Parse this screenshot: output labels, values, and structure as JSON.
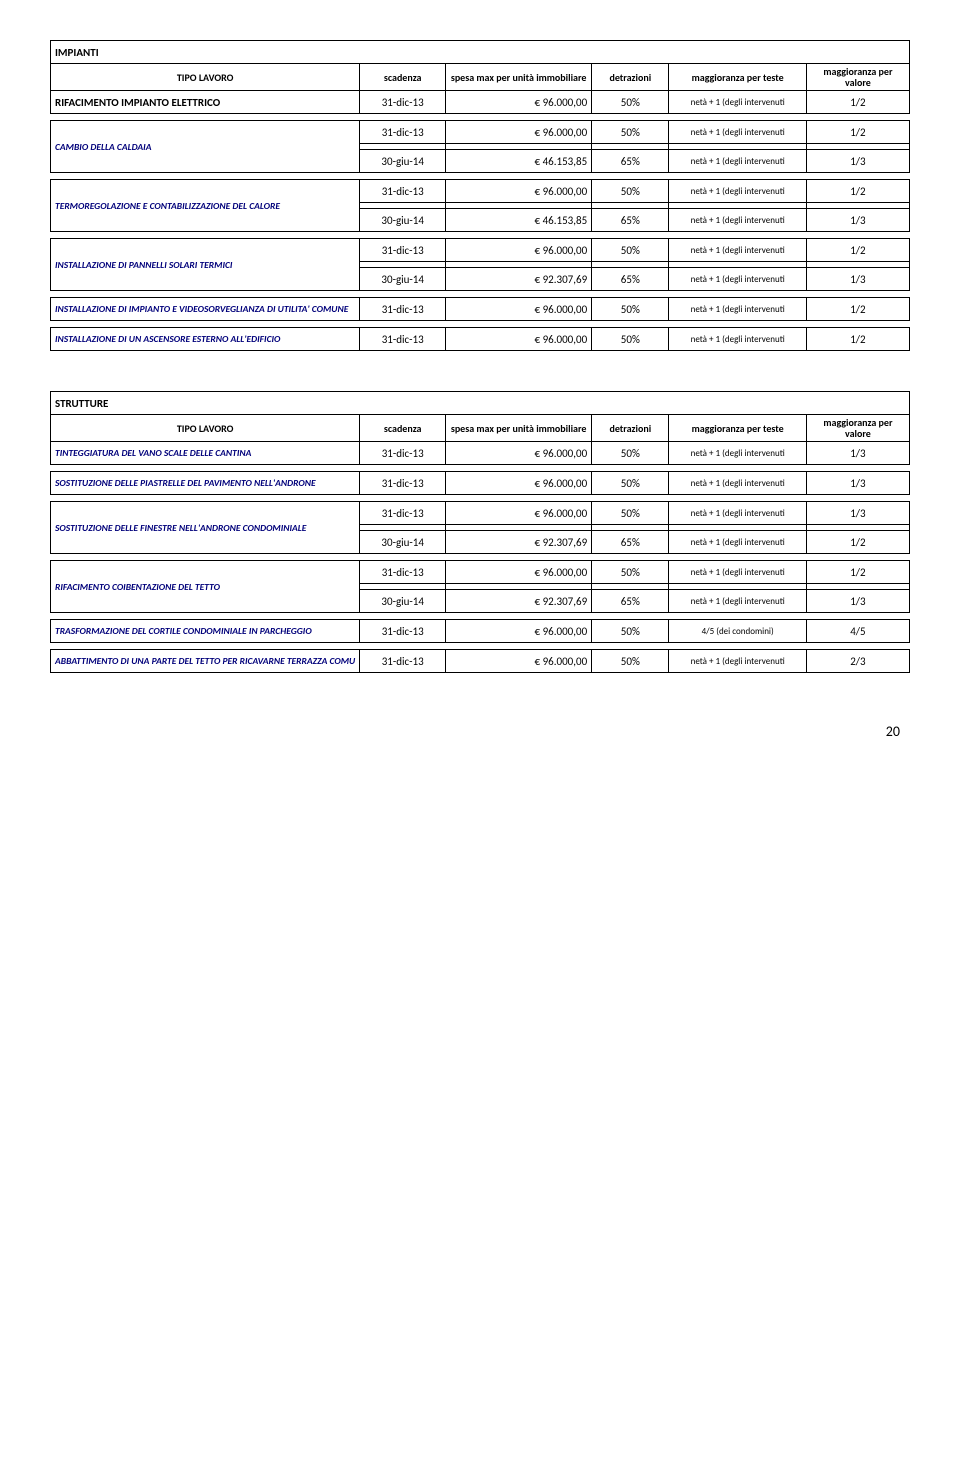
{
  "page_number": "20",
  "impianti": {
    "title": "IMPIANTI",
    "headers": {
      "tipo_lavoro": "TIPO LAVORO",
      "scadenza": "scadenza",
      "spesa": "spesa max per unità immobiliare",
      "detrazioni": "detrazioni",
      "magg_teste": "maggioranza per teste",
      "magg_valore": "maggioranza per valore"
    },
    "rows": [
      {
        "label": "RIFACIMENTO IMPIANTO ELETTRICO",
        "style": "black",
        "lines": [
          {
            "scad": "31-dic-13",
            "spesa": "€ 96.000,00",
            "detr": "50%",
            "teste": "netà + 1 (degli intervenuti",
            "val": "1/2"
          }
        ]
      },
      {
        "label": "CAMBIO DELLA CALDAIA",
        "style": "blue",
        "lines": [
          {
            "scad": "31-dic-13",
            "spesa": "€ 96.000,00",
            "detr": "50%",
            "teste": "netà + 1 (degli intervenuti",
            "val": "1/2"
          },
          {
            "scad": "30-giu-14",
            "spesa": "€ 46.153,85",
            "detr": "65%",
            "teste": "netà + 1 (degli intervenuti",
            "val": "1/3"
          }
        ]
      },
      {
        "label": "TERMOREGOLAZIONE E CONTABILIZZAZIONE DEL CALORE",
        "style": "blue",
        "lines": [
          {
            "scad": "31-dic-13",
            "spesa": "€ 96.000,00",
            "detr": "50%",
            "teste": "netà + 1 (degli intervenuti",
            "val": "1/2"
          },
          {
            "scad": "30-giu-14",
            "spesa": "€ 46.153,85",
            "detr": "65%",
            "teste": "netà + 1 (degli intervenuti",
            "val": "1/3"
          }
        ]
      },
      {
        "label": "INSTALLAZIONE DI PANNELLI SOLARI TERMICI",
        "style": "blue",
        "lines": [
          {
            "scad": "31-dic-13",
            "spesa": "€ 96.000,00",
            "detr": "50%",
            "teste": "netà + 1 (degli intervenuti",
            "val": "1/2"
          },
          {
            "scad": "30-giu-14",
            "spesa": "€ 92.307,69",
            "detr": "65%",
            "teste": "netà + 1 (degli intervenuti",
            "val": "1/3"
          }
        ]
      },
      {
        "label": "INSTALLAZIONE DI IMPIANTO E VIDEOSORVEGLIANZA DI UTILITA' COMUNE",
        "style": "blue",
        "lines": [
          {
            "scad": "31-dic-13",
            "spesa": "€ 96.000,00",
            "detr": "50%",
            "teste": "netà + 1 (degli intervenuti",
            "val": "1/2"
          }
        ]
      },
      {
        "label": "INSTALLAZIONE DI UN ASCENSORE ESTERNO ALL'EDIFICIO",
        "style": "blue",
        "lines": [
          {
            "scad": "31-dic-13",
            "spesa": "€ 96.000,00",
            "detr": "50%",
            "teste": "netà + 1 (degli intervenuti",
            "val": "1/2"
          }
        ]
      }
    ]
  },
  "strutture": {
    "title": "STRUTTURE",
    "headers": {
      "tipo_lavoro": "TIPO LAVORO",
      "scadenza": "scadenza",
      "spesa": "spesa max per unità immobiliare",
      "detrazioni": "detrazioni",
      "magg_teste": "maggioranza per teste",
      "magg_valore": "maggioranza per valore"
    },
    "rows": [
      {
        "label": "TINTEGGIATURA DEL VANO SCALE DELLE CANTINA",
        "style": "blue",
        "lines": [
          {
            "scad": "31-dic-13",
            "spesa": "€ 96.000,00",
            "detr": "50%",
            "teste": "netà + 1 (degli intervenuti",
            "val": "1/3"
          }
        ]
      },
      {
        "label": "SOSTITUZIONE DELLE PIASTRELLE DEL PAVIMENTO NELL'ANDRONE",
        "style": "blue",
        "lines": [
          {
            "scad": "31-dic-13",
            "spesa": "€ 96.000,00",
            "detr": "50%",
            "teste": "netà + 1 (degli intervenuti",
            "val": "1/3"
          }
        ]
      },
      {
        "label": "SOSTITUZIONE DELLE FINESTRE NELL'ANDRONE CONDOMINIALE",
        "style": "blue",
        "lines": [
          {
            "scad": "31-dic-13",
            "spesa": "€ 96.000,00",
            "detr": "50%",
            "teste": "netà + 1 (degli intervenuti",
            "val": "1/3"
          },
          {
            "scad": "30-giu-14",
            "spesa": "€ 92.307,69",
            "detr": "65%",
            "teste": "netà + 1 (degli intervenuti",
            "val": "1/2"
          }
        ]
      },
      {
        "label": "RIFACIMENTO COIBENTAZIONE DEL TETTO",
        "style": "blue",
        "lines": [
          {
            "scad": "31-dic-13",
            "spesa": "€ 96.000,00",
            "detr": "50%",
            "teste": "netà + 1 (degli intervenuti",
            "val": "1/2"
          },
          {
            "scad": "30-giu-14",
            "spesa": "€ 92.307,69",
            "detr": "65%",
            "teste": "netà + 1 (degli intervenuti",
            "val": "1/3"
          }
        ]
      },
      {
        "label": "TRASFORMAZIONE DEL CORTILE CONDOMINIALE IN PARCHEGGIO",
        "style": "blue",
        "lines": [
          {
            "scad": "31-dic-13",
            "spesa": "€ 96.000,00",
            "detr": "50%",
            "teste": "4/5 (dei condomini)",
            "val": "4/5"
          }
        ]
      },
      {
        "label": "ABBATTIMENTO DI UNA PARTE DEL TETTO PER RICAVARNE TERRAZZA COMU",
        "style": "blue",
        "lines": [
          {
            "scad": "31-dic-13",
            "spesa": "€ 96.000,00",
            "detr": "50%",
            "teste": "netà + 1 (degli intervenuti",
            "val": "2/3"
          }
        ]
      }
    ]
  }
}
